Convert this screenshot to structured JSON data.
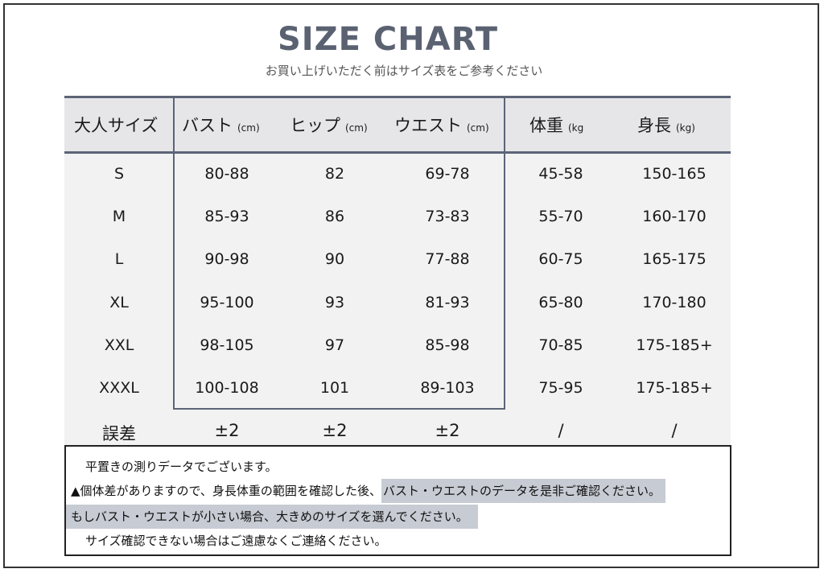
{
  "title": "SIZE CHART",
  "subtitle": "お買い上げいただく前はサイズ表をご参考ください",
  "headers": [
    {
      "label": "大人サイズ",
      "unit": ""
    },
    {
      "label": "バスト",
      "unit": "(cm)"
    },
    {
      "label": "ヒップ",
      "unit": "(cm)"
    },
    {
      "label": "ウエスト",
      "unit": "(cm)"
    },
    {
      "label": "体重",
      "unit": "(kg"
    },
    {
      "label": "身長",
      "unit": "(kg)"
    }
  ],
  "rows": [
    [
      "S",
      "80-88",
      "82",
      "69-78",
      "45-58",
      "150-165"
    ],
    [
      "M",
      "85-93",
      "86",
      "73-83",
      "55-70",
      "160-170"
    ],
    [
      "L",
      "90-98",
      "90",
      "77-88",
      "60-75",
      "165-175"
    ],
    [
      "XL",
      "95-100",
      "93",
      "81-93",
      "65-80",
      "170-180"
    ],
    [
      "XXL",
      "98-105",
      "97",
      "85-98",
      "70-85",
      "175-185+"
    ],
    [
      "XXXL",
      "100-108",
      "101",
      "89-103",
      "75-95",
      "175-185+"
    ],
    [
      "誤差",
      "±2",
      "±2",
      "±2",
      "/",
      "/"
    ]
  ],
  "notes": {
    "line1": "平置きの測りデータでございます。",
    "line2a": "▲個体差がありますので、身長体重の範囲を確認した後、",
    "line2b": "バスト・ウエストのデータを是非ご確認ください。",
    "line3": "もしバスト・ウエストが小さい場合、大きめのサイズを選んでください。",
    "line4": "サイズ確認できない場合はご遠慮なくご連絡ください。"
  },
  "colors": {
    "title": "#5a6272",
    "rule": "#5d6478",
    "table_bg": "#f2f2f2",
    "highlight": "#c7cbd3"
  }
}
